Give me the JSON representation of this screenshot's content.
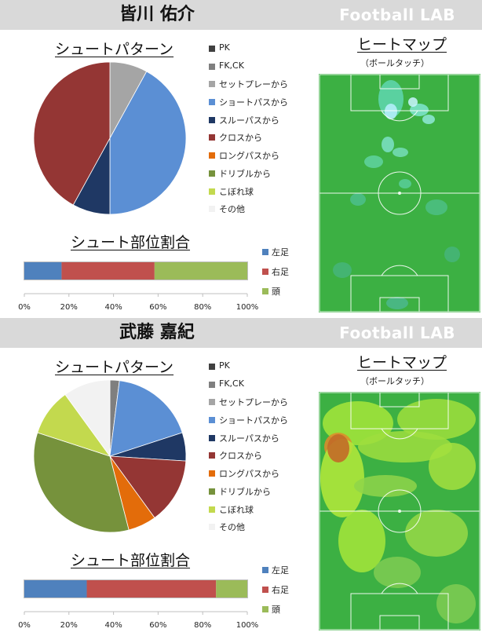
{
  "site": "Football LAB",
  "players": [
    {
      "name": "皆川 佑介",
      "shot_pattern_title": "シュートパターン",
      "heatmap_title": "ヒートマップ",
      "heatmap_subtitle": "（ボールタッチ）",
      "body_part_title": "シュート部位割合",
      "legend": [
        "PK",
        "FK,CK",
        "セットプレーから",
        "ショートパスから",
        "スルーパスから",
        "クロスから",
        "ロングパスから",
        "ドリブルから",
        "こぼれ球",
        "その他"
      ],
      "bar_legend": [
        "左足",
        "右足",
        "頭"
      ]
    },
    {
      "name": "武藤 嘉紀",
      "shot_pattern_title": "シュートパターン",
      "heatmap_title": "ヒートマップ",
      "heatmap_subtitle": "（ボールタッチ）",
      "body_part_title": "シュート部位割合",
      "legend": [
        "PK",
        "FK,CK",
        "セットプレーから",
        "ショートパスから",
        "スルーパスから",
        "クロスから",
        "ロングパスから",
        "ドリブルから",
        "こぼれ球",
        "その他"
      ],
      "bar_legend": [
        "左足",
        "右足",
        "頭"
      ]
    }
  ],
  "colors": {
    "PK": "#404040",
    "FK,CK": "#7f7f7f",
    "セットプレーから": "#a5a5a5",
    "ショートパスから": "#5b8fd4",
    "スルーパスから": "#1f3864",
    "クロスから": "#943634",
    "ロングパスから": "#e36c0a",
    "ドリブルから": "#76923c",
    "こぼれ球": "#c3d94e",
    "その他": "#f2f2f2",
    "左足": "#4f81bd",
    "右足": "#c0504d",
    "頭": "#9bbb59",
    "pitch": "#3cb043",
    "header_bg": "#d9d9d9"
  },
  "chart_data": [
    {
      "type": "pie",
      "player": "皆川 佑介",
      "categories": [
        "PK",
        "FK,CK",
        "セットプレーから",
        "ショートパスから",
        "スルーパスから",
        "クロスから",
        "ロングパスから",
        "ドリブルから",
        "こぼれ球",
        "その他"
      ],
      "values": [
        0,
        0,
        8,
        42,
        8,
        42,
        0,
        0,
        0,
        0
      ]
    },
    {
      "type": "bar",
      "orientation": "horizontal-stacked-percent",
      "player": "皆川 佑介",
      "series": [
        {
          "name": "左足",
          "values": [
            16.7
          ]
        },
        {
          "name": "右足",
          "values": [
            41.7
          ]
        },
        {
          "name": "頭",
          "values": [
            41.6
          ]
        }
      ],
      "xlim": [
        0,
        100
      ],
      "xticks": [
        "0%",
        "20%",
        "40%",
        "60%",
        "80%",
        "100%"
      ]
    },
    {
      "type": "pie",
      "player": "武藤 嘉紀",
      "categories": [
        "PK",
        "FK,CK",
        "セットプレーから",
        "ショートパスから",
        "スルーパスから",
        "クロスから",
        "ロングパスから",
        "ドリブルから",
        "こぼれ球",
        "その他"
      ],
      "values": [
        0,
        2,
        0,
        18,
        6,
        14,
        6,
        34,
        10,
        10
      ]
    },
    {
      "type": "bar",
      "orientation": "horizontal-stacked-percent",
      "player": "武藤 嘉紀",
      "series": [
        {
          "name": "左足",
          "values": [
            28
          ]
        },
        {
          "name": "右足",
          "values": [
            58
          ]
        },
        {
          "name": "頭",
          "values": [
            14
          ]
        }
      ],
      "xlim": [
        0,
        100
      ],
      "xticks": [
        "0%",
        "20%",
        "40%",
        "60%",
        "80%",
        "100%"
      ]
    }
  ]
}
